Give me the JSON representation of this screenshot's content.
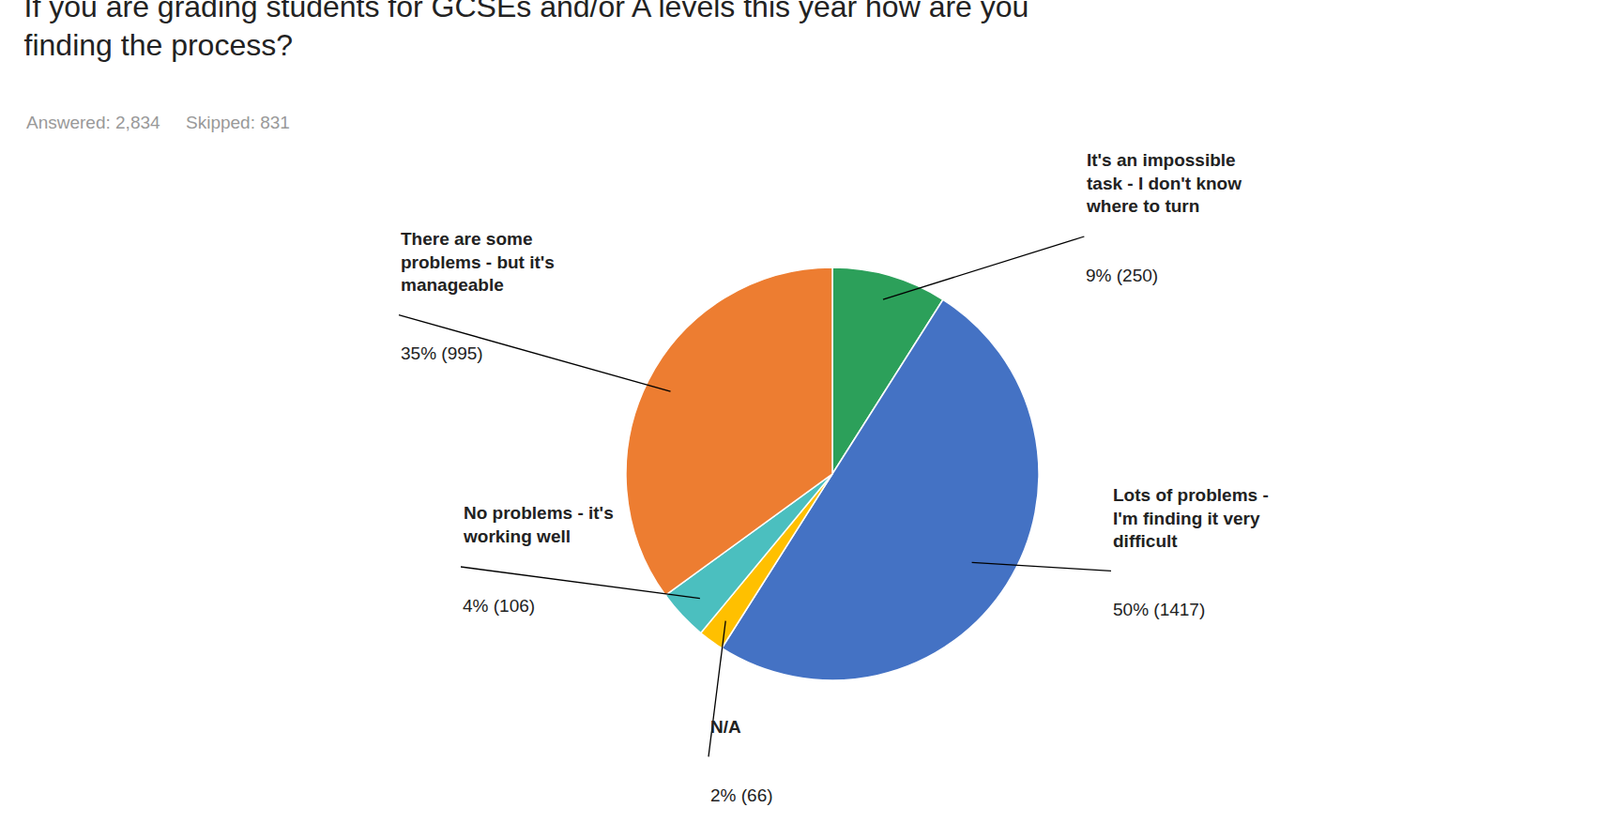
{
  "chart_data": {
    "type": "pie",
    "title": "If you are grading students for GCSEs and/or A levels this year how are you\nfinding the process?",
    "subtitle": [
      "Answered: 2,834",
      "Skipped: 831"
    ],
    "categories": [
      "It's an impossible\ntask - I don't know\nwhere to turn",
      "Lots of problems -\nI'm finding it very\ndifficult",
      "N/A",
      "No problems - it's\nworking well",
      "There are some\nproblems - but it's\nmanageable"
    ],
    "values": [
      9,
      50,
      2,
      4,
      35
    ],
    "value_labels": [
      "9% (250)",
      "50% (1417)",
      "2% (66)",
      "4% (106)",
      "35% (995)"
    ],
    "colors": [
      "#2CA05A",
      "#4472C4",
      "#FFC000",
      "#4BBFBF",
      "#ED7D31"
    ],
    "data_labels": true
  }
}
